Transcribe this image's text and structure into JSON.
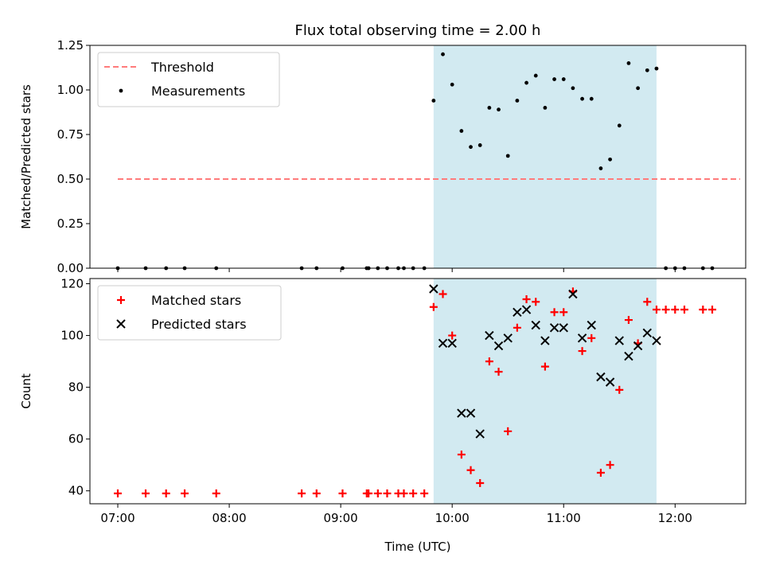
{
  "colors": {
    "threshold": "#ff7b7b",
    "measurements": "#000000",
    "matched": "#ff0000",
    "predicted": "#000000",
    "shade": "#add8e6"
  },
  "chart_data": [
    {
      "type": "scatter",
      "title": "Flux total observing time = 2.00 h",
      "xlabel": "",
      "ylabel": "Matched/Predicted stars",
      "xlim": [
        "06:45",
        "12:38"
      ],
      "ylim": [
        0,
        1.25
      ],
      "yticks": [
        "0.00",
        "0.25",
        "0.50",
        "0.75",
        "1.00",
        "1.25"
      ],
      "grid": false,
      "legend_position": "top-left",
      "shaded_span": {
        "x_start": "09:50",
        "x_end": "11:50"
      },
      "threshold": {
        "name": "Threshold",
        "y": 0.5,
        "x_start": "07:00",
        "x_end": "12:35"
      },
      "series": [
        {
          "name": "Measurements",
          "marker": "dot",
          "x": [
            "07:00",
            "07:15",
            "07:26",
            "07:36",
            "07:53",
            "08:39",
            "08:47",
            "09:01",
            "09:14",
            "09:15",
            "09:20",
            "09:25",
            "09:31",
            "09:34",
            "09:39",
            "09:45",
            "09:50",
            "09:55",
            "10:00",
            "10:05",
            "10:10",
            "10:15",
            "10:20",
            "10:25",
            "10:30",
            "10:35",
            "10:40",
            "10:45",
            "10:50",
            "10:55",
            "11:00",
            "11:05",
            "11:10",
            "11:15",
            "11:20",
            "11:25",
            "11:30",
            "11:35",
            "11:40",
            "11:45",
            "11:50",
            "11:55",
            "12:00",
            "12:05",
            "12:15",
            "12:20"
          ],
          "y": [
            0,
            0,
            0,
            0,
            0,
            0,
            0,
            0,
            0,
            0,
            0,
            0,
            0,
            0,
            0,
            0,
            0.94,
            1.2,
            1.03,
            0.77,
            0.68,
            0.69,
            0.9,
            0.89,
            0.63,
            0.94,
            1.04,
            1.08,
            0.9,
            1.06,
            1.06,
            1.01,
            0.95,
            0.95,
            0.56,
            0.61,
            0.8,
            1.15,
            1.01,
            1.11,
            1.12,
            0,
            0,
            0,
            0,
            0
          ]
        }
      ]
    },
    {
      "type": "scatter",
      "title": "",
      "xlabel": "Time (UTC)",
      "ylabel": "Count",
      "xlim": [
        "06:45",
        "12:38"
      ],
      "ylim": [
        35,
        122
      ],
      "xticks": [
        "07:00",
        "08:00",
        "09:00",
        "10:00",
        "11:00",
        "12:00"
      ],
      "yticks": [
        "40",
        "60",
        "80",
        "100",
        "120"
      ],
      "grid": false,
      "legend_position": "top-left",
      "shaded_span": {
        "x_start": "09:50",
        "x_end": "11:50"
      },
      "series": [
        {
          "name": "Matched stars",
          "marker": "plus",
          "x": [
            "07:00",
            "07:15",
            "07:26",
            "07:36",
            "07:53",
            "08:39",
            "08:47",
            "09:01",
            "09:14",
            "09:15",
            "09:20",
            "09:25",
            "09:31",
            "09:34",
            "09:39",
            "09:45",
            "09:50",
            "09:55",
            "10:00",
            "10:05",
            "10:10",
            "10:15",
            "10:20",
            "10:25",
            "10:30",
            "10:35",
            "10:40",
            "10:45",
            "10:50",
            "10:55",
            "11:00",
            "11:05",
            "11:10",
            "11:15",
            "11:20",
            "11:25",
            "11:30",
            "11:35",
            "11:40",
            "11:45",
            "11:50",
            "11:55",
            "12:00",
            "12:05",
            "12:15",
            "12:20"
          ],
          "y": [
            39,
            39,
            39,
            39,
            39,
            39,
            39,
            39,
            39,
            39,
            39,
            39,
            39,
            39,
            39,
            39,
            111,
            116,
            100,
            54,
            48,
            43,
            90,
            86,
            63,
            103,
            114,
            113,
            88,
            109,
            109,
            117,
            94,
            99,
            47,
            50,
            79,
            106,
            97,
            113,
            110,
            110,
            110,
            110,
            110,
            110
          ]
        },
        {
          "name": "Predicted stars",
          "marker": "x",
          "x": [
            "09:50",
            "09:55",
            "10:00",
            "10:05",
            "10:10",
            "10:15",
            "10:20",
            "10:25",
            "10:30",
            "10:35",
            "10:40",
            "10:45",
            "10:50",
            "10:55",
            "11:00",
            "11:05",
            "11:10",
            "11:15",
            "11:20",
            "11:25",
            "11:30",
            "11:35",
            "11:40",
            "11:45",
            "11:50"
          ],
          "y": [
            118,
            97,
            97,
            70,
            70,
            62,
            100,
            96,
            99,
            109,
            110,
            104,
            98,
            103,
            103,
            116,
            99,
            104,
            84,
            82,
            98,
            92,
            96,
            101,
            98
          ]
        }
      ]
    }
  ]
}
